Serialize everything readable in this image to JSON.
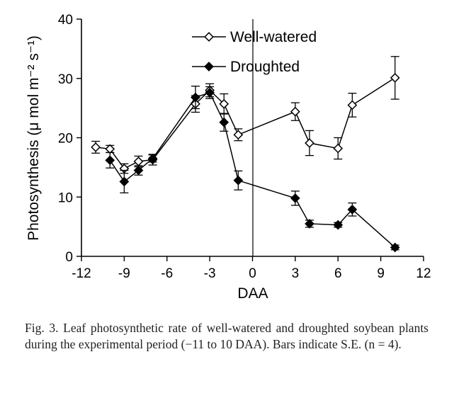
{
  "chart_data": {
    "type": "line",
    "title": "",
    "xlabel": "DAA",
    "ylabel": "Photosynthesis (μ mol m⁻² s⁻¹)",
    "xlim": [
      -12,
      12
    ],
    "ylim": [
      0,
      40
    ],
    "xticks": [
      -12,
      -9,
      -6,
      -3,
      0,
      3,
      6,
      9,
      12
    ],
    "yticks": [
      0,
      10,
      20,
      30,
      40
    ],
    "xtick_labels": [
      "-12",
      "-9",
      "-6",
      "-3",
      "0",
      "3",
      "6",
      "9",
      "12"
    ],
    "ytick_labels": [
      "0",
      "10",
      "20",
      "30",
      "40"
    ],
    "grid": false,
    "legend_position": "top-center",
    "series": [
      {
        "name": "Well-watered",
        "marker": "open-diamond",
        "x": [
          -11,
          -10,
          -9,
          -8,
          -7,
          -4,
          -3,
          -2,
          -1,
          3,
          4,
          6,
          7,
          10
        ],
        "y": [
          18.4,
          18.1,
          14.8,
          16.0,
          16.3,
          25.7,
          28.0,
          25.7,
          20.5,
          24.4,
          19.1,
          18.2,
          25.5,
          30.1
        ],
        "err": [
          1.0,
          0.6,
          0.8,
          0.9,
          0.9,
          1.4,
          1.1,
          1.7,
          1.0,
          1.5,
          2.1,
          1.8,
          2.0,
          3.6
        ]
      },
      {
        "name": "Droughted",
        "marker": "filled-diamond",
        "x": [
          -10,
          -9,
          -8,
          -7,
          -4,
          -3,
          -2,
          -1,
          3,
          4,
          6,
          7,
          10
        ],
        "y": [
          16.2,
          12.6,
          14.5,
          16.5,
          26.8,
          27.6,
          22.6,
          12.8,
          9.8,
          5.5,
          5.3,
          7.9,
          1.5
        ],
        "err": [
          1.3,
          1.9,
          0.8,
          0.6,
          1.9,
          1.0,
          1.5,
          1.6,
          1.2,
          0.6,
          0.4,
          1.1,
          0.4
        ]
      }
    ]
  },
  "caption": {
    "text": "Fig. 3. Leaf photosynthetic rate of well-watered and droughted soybean plants during the experimental period (−11 to 10 DAA). Bars indicate S.E. (n = 4)."
  }
}
